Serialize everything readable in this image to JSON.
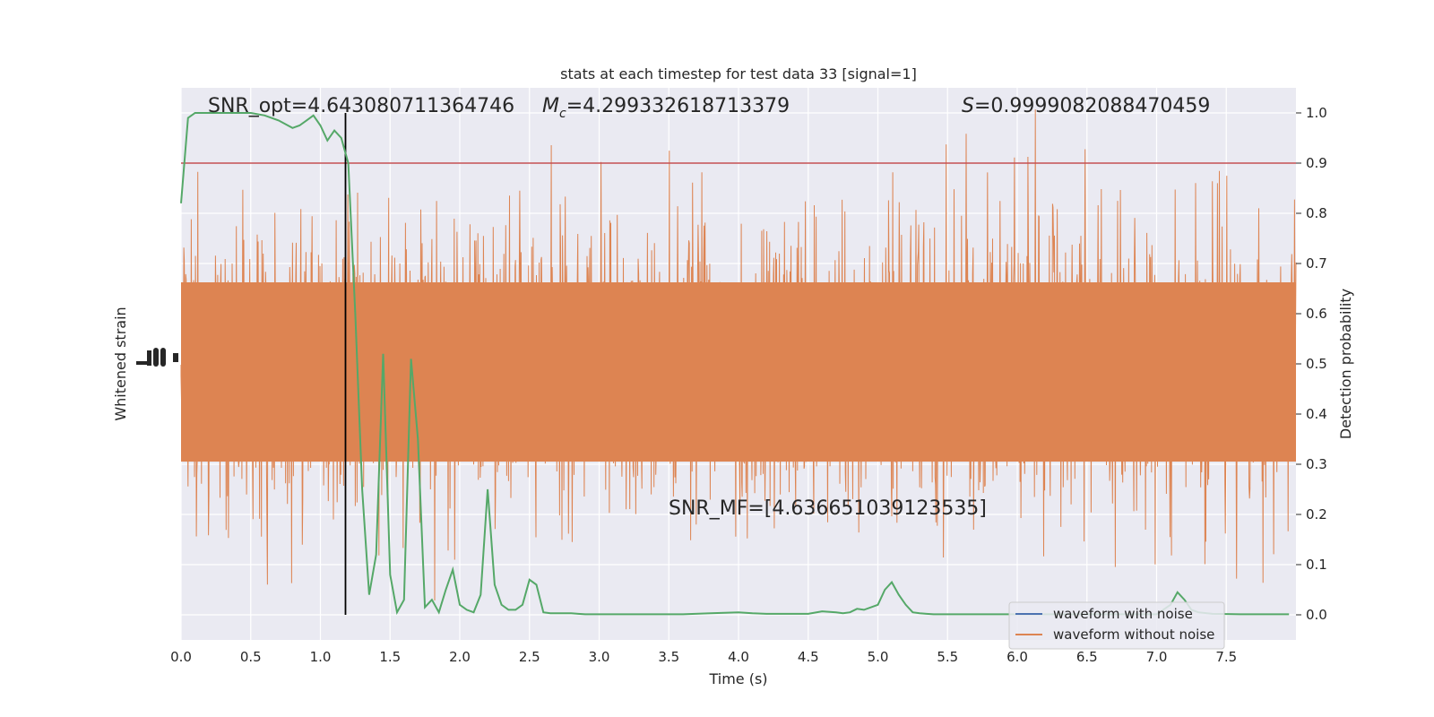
{
  "chart_data": {
    "type": "line",
    "title": "stats at each timestep for test data 33 [signal=1]",
    "xlabel": "Time (s)",
    "ylabel_left": "Whitened strain",
    "ylabel_right": "Detection probability",
    "xlim": [
      0,
      8
    ],
    "ylim_right": [
      -0.05,
      1.05
    ],
    "x_ticks": [
      "0.0",
      "0.5",
      "1.0",
      "1.5",
      "2.0",
      "2.5",
      "3.0",
      "3.5",
      "4.0",
      "4.5",
      "5.0",
      "5.5",
      "6.0",
      "6.5",
      "7.0",
      "7.5"
    ],
    "y_ticks_right": [
      "0.0",
      "0.1",
      "0.2",
      "0.3",
      "0.4",
      "0.5",
      "0.6",
      "0.7",
      "0.8",
      "0.9",
      "1.0"
    ],
    "grid": true,
    "legend_position": "lower-right",
    "annotations": {
      "snr_opt": "SNR_opt=4.643080711364746",
      "mc": "=4.299332618713379",
      "s_value": "=0.9999082088470459",
      "snr_mf": "SNR_MF=[4.636651039123535]"
    },
    "threshold": 0.9,
    "event_time": 1.18,
    "series": [
      {
        "name": "waveform with noise",
        "color": "#4c72b0"
      },
      {
        "name": "waveform without noise",
        "color": "#dd8452"
      },
      {
        "color": "#55a868",
        "x": [
          0.0,
          0.05,
          0.1,
          0.2,
          0.3,
          0.4,
          0.5,
          0.6,
          0.7,
          0.8,
          0.85,
          0.9,
          0.95,
          1.0,
          1.05,
          1.1,
          1.15,
          1.2,
          1.25,
          1.3,
          1.35,
          1.4,
          1.45,
          1.5,
          1.55,
          1.6,
          1.65,
          1.7,
          1.75,
          1.8,
          1.85,
          1.9,
          1.95,
          2.0,
          2.05,
          2.1,
          2.15,
          2.2,
          2.25,
          2.3,
          2.35,
          2.4,
          2.45,
          2.5,
          2.55,
          2.6,
          2.65,
          2.7,
          2.75,
          2.8,
          2.85,
          2.9,
          2.95,
          3.0,
          3.05,
          3.1,
          3.2,
          3.4,
          3.6,
          3.8,
          3.9,
          4.0,
          4.1,
          4.2,
          4.4,
          4.5,
          4.6,
          4.7,
          4.75,
          4.8,
          4.85,
          4.9,
          5.0,
          5.05,
          5.1,
          5.15,
          5.2,
          5.25,
          5.3,
          5.35,
          5.4,
          5.5,
          5.6,
          5.8,
          6.0,
          6.2,
          6.4,
          6.6,
          6.8,
          7.0,
          7.1,
          7.15,
          7.2,
          7.25,
          7.3,
          7.4,
          7.6,
          7.8,
          7.95
        ],
        "values": [
          0.82,
          0.99,
          1.0,
          1.0,
          1.0,
          1.0,
          1.0,
          0.995,
          0.985,
          0.97,
          0.975,
          0.985,
          0.995,
          0.975,
          0.945,
          0.965,
          0.95,
          0.9,
          0.6,
          0.25,
          0.04,
          0.12,
          0.52,
          0.08,
          0.005,
          0.03,
          0.51,
          0.35,
          0.015,
          0.03,
          0.005,
          0.05,
          0.09,
          0.02,
          0.01,
          0.005,
          0.04,
          0.25,
          0.06,
          0.02,
          0.01,
          0.01,
          0.02,
          0.07,
          0.06,
          0.005,
          0.003,
          0.003,
          0.003,
          0.003,
          0.002,
          0.001,
          0.001,
          0.001,
          0.001,
          0.001,
          0.001,
          0.001,
          0.001,
          0.003,
          0.004,
          0.005,
          0.003,
          0.002,
          0.002,
          0.002,
          0.007,
          0.005,
          0.003,
          0.005,
          0.012,
          0.01,
          0.02,
          0.05,
          0.065,
          0.04,
          0.02,
          0.005,
          0.003,
          0.002,
          0.001,
          0.001,
          0.001,
          0.001,
          0.001,
          0.001,
          0.001,
          0.001,
          0.001,
          0.001,
          0.02,
          0.045,
          0.03,
          0.01,
          0.005,
          0.002,
          0.001,
          0.001,
          0.001
        ]
      }
    ]
  }
}
